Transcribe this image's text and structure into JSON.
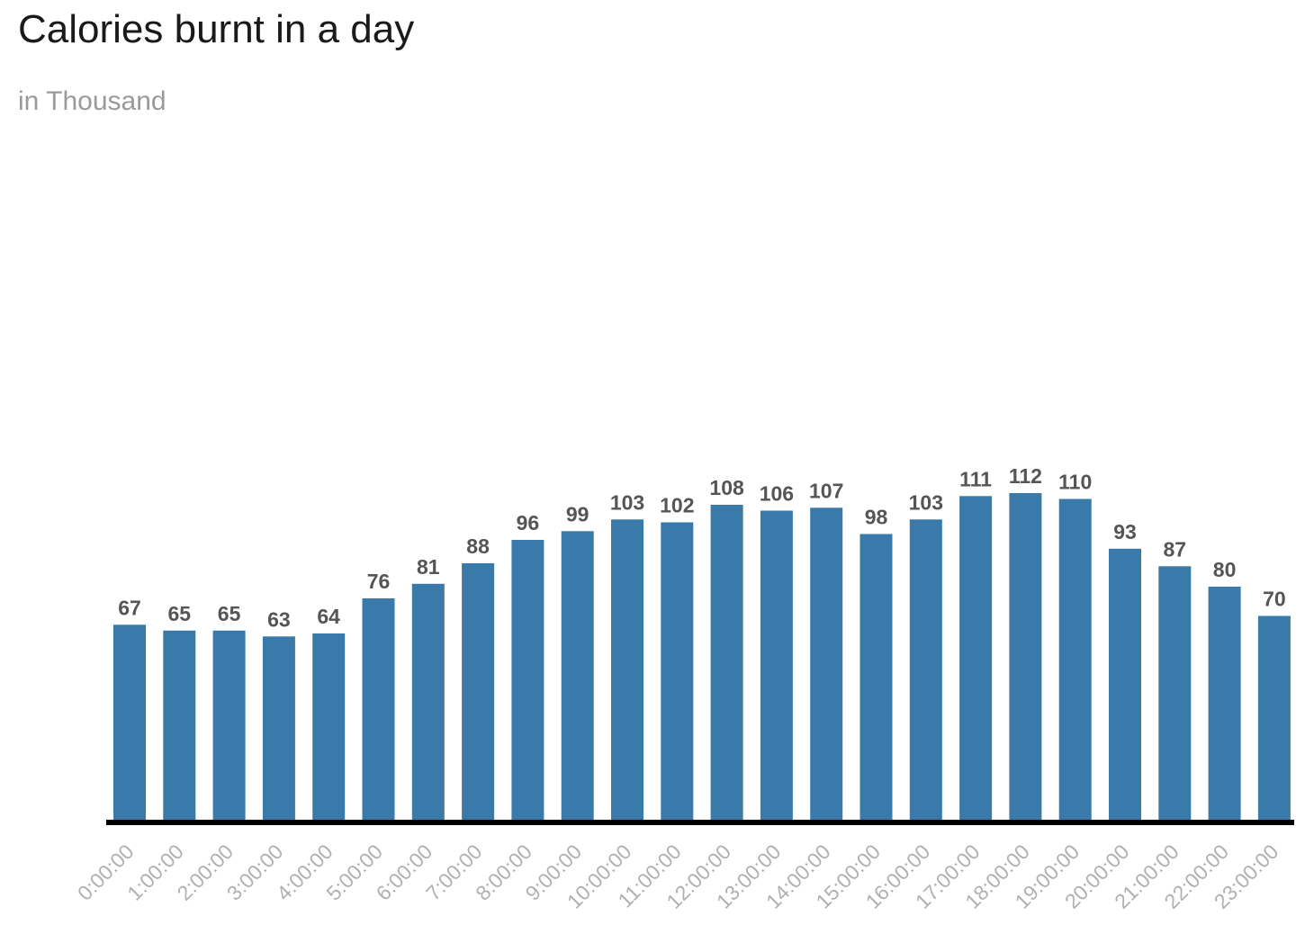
{
  "chart_data": {
    "type": "bar",
    "title": "Calories burnt in a day",
    "subtitle": "in Thousand",
    "xlabel": "",
    "ylabel": "",
    "ylim": [
      0,
      119
    ],
    "grid": false,
    "bar_color": "#3a7aab",
    "axis_color": "#000000",
    "categories": [
      "0:00:00",
      "1:00:00",
      "2:00:00",
      "3:00:00",
      "4:00:00",
      "5:00:00",
      "6:00:00",
      "7:00:00",
      "8:00:00",
      "9:00:00",
      "10:00:00",
      "11:00:00",
      "12:00:00",
      "13:00:00",
      "14:00:00",
      "15:00:00",
      "16:00:00",
      "17:00:00",
      "18:00:00",
      "19:00:00",
      "20:00:00",
      "21:00:00",
      "22:00:00",
      "23:00:00"
    ],
    "values": [
      67,
      65,
      65,
      63,
      64,
      76,
      81,
      88,
      96,
      99,
      103,
      102,
      108,
      106,
      107,
      98,
      103,
      111,
      112,
      110,
      93,
      87,
      80,
      70
    ]
  }
}
